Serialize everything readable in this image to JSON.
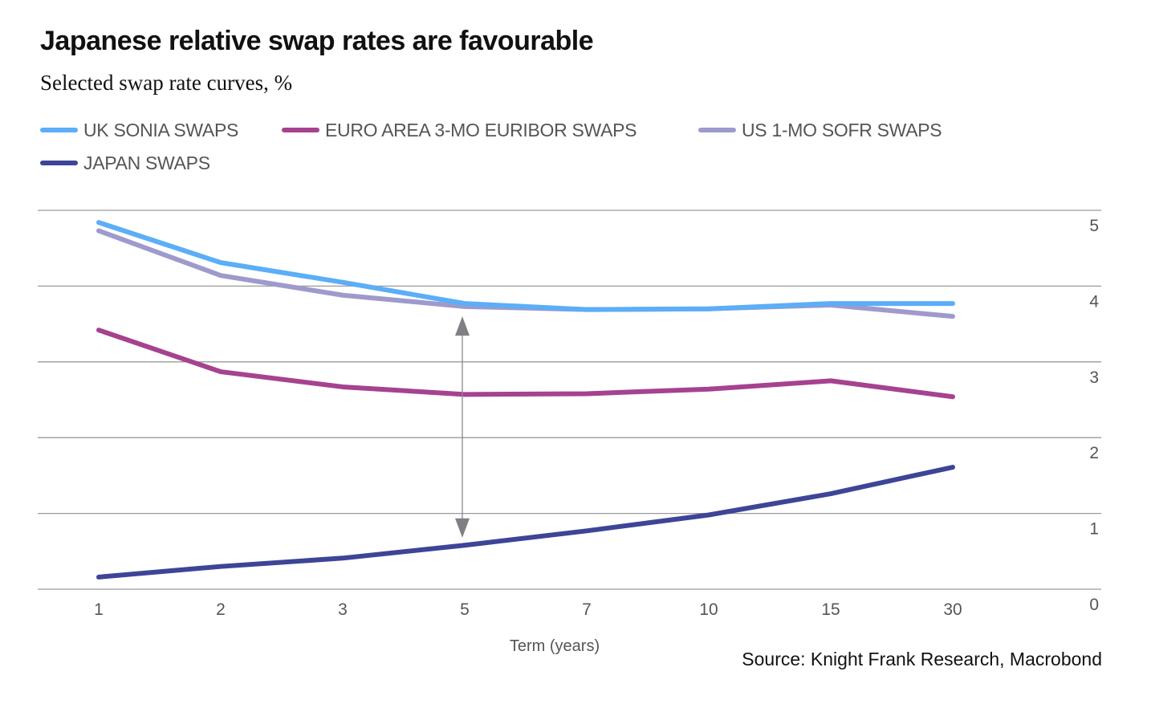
{
  "chart_data": {
    "type": "line",
    "title": "Japanese relative swap rates are favourable",
    "subtitle": "Selected swap rate curves, %",
    "xlabel": "Term (years)",
    "ylabel": "",
    "categories": [
      "1",
      "2",
      "3",
      "5",
      "7",
      "10",
      "15",
      "30"
    ],
    "ylim": [
      0,
      5
    ],
    "yticks": [
      0,
      1,
      2,
      3,
      4,
      5
    ],
    "grid": true,
    "y_axis_side": "right",
    "legend_position": "top-left",
    "series": [
      {
        "name": "UK SONIA SWAPS",
        "color": "#5BAEF7",
        "values": [
          4.84,
          4.31,
          4.05,
          3.77,
          3.69,
          3.7,
          3.77,
          3.77
        ]
      },
      {
        "name": "EURO AREA 3-MO EURIBOR SWAPS",
        "color": "#A6428F",
        "values": [
          3.42,
          2.87,
          2.67,
          2.57,
          2.58,
          2.64,
          2.75,
          2.54
        ]
      },
      {
        "name": "US 1-MO SOFR SWAPS",
        "color": "#9E9ACC",
        "values": [
          4.73,
          4.14,
          3.88,
          3.73,
          3.69,
          3.7,
          3.75,
          3.6
        ]
      },
      {
        "name": "JAPAN SWAPS",
        "color": "#3D4597",
        "values": [
          0.16,
          0.3,
          0.41,
          0.58,
          0.77,
          0.98,
          1.26,
          1.61
        ]
      }
    ],
    "annotations": [
      {
        "type": "double-arrow",
        "x_category": "5",
        "from_value": 0.68,
        "to_value": 3.6,
        "color": "#7F7F84"
      }
    ],
    "source": "Source: Knight Frank Research, Macrobond"
  }
}
